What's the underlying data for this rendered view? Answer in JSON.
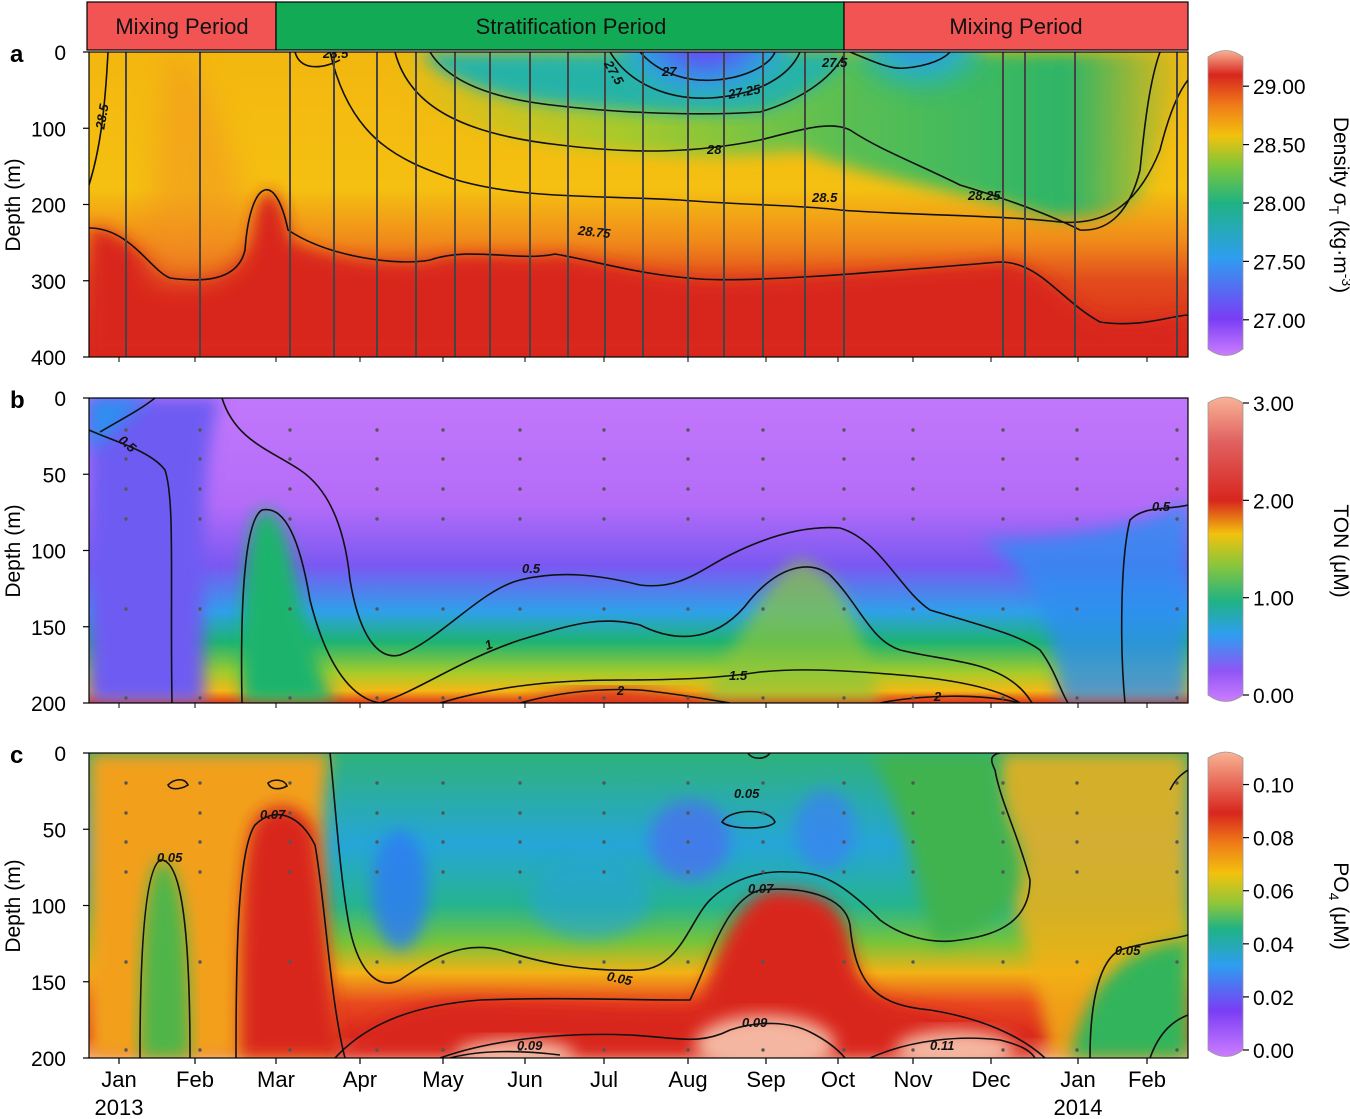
{
  "periods": [
    {
      "label": "Mixing Period",
      "color": "#f25454"
    },
    {
      "label": "Stratification Period",
      "color": "#13aa55"
    },
    {
      "label": "Mixing Period",
      "color": "#f25454"
    }
  ],
  "x_axis": {
    "months": [
      "Jan",
      "Feb",
      "Mar",
      "Apr",
      "May",
      "Jun",
      "Jul",
      "Aug",
      "Sep",
      "Oct",
      "Nov",
      "Dec",
      "Jan",
      "Feb"
    ],
    "years": [
      "2013",
      "2014"
    ]
  },
  "chart_data": [
    {
      "type": "heatmap",
      "panel_letter": "a",
      "ylabel": "Depth (m)",
      "y_ticks": [
        "0",
        "100",
        "200",
        "300",
        "400"
      ],
      "ylim": [
        400,
        0
      ],
      "colorbar_label": "Density σT (kg·m-3)",
      "colorbar_ticks": [
        "29.00",
        "28.50",
        "28.00",
        "27.50",
        "27.00"
      ],
      "colorbar_range": [
        26.75,
        29.25
      ],
      "contour_labels": [
        "28.5",
        "28.5",
        "27.5",
        "27",
        "27.25",
        "27.5",
        "28",
        "28.5",
        "28.25",
        "28.75"
      ],
      "sampling_lines": true
    },
    {
      "type": "heatmap",
      "panel_letter": "b",
      "ylabel": "Depth (m)",
      "y_ticks": [
        "0",
        "50",
        "100",
        "150",
        "200"
      ],
      "ylim": [
        200,
        0
      ],
      "colorbar_label": "TON (μM)",
      "colorbar_ticks": [
        "3.00",
        "2.00",
        "1.00",
        "0.00"
      ],
      "colorbar_range": [
        0,
        3
      ],
      "contour_labels": [
        "0.5",
        "0.5",
        "0.5",
        "1",
        "1.5",
        "2",
        "2"
      ],
      "sample_points": true
    },
    {
      "type": "heatmap",
      "panel_letter": "c",
      "ylabel": "Depth (m)",
      "y_ticks": [
        "0",
        "50",
        "100",
        "150",
        "200"
      ],
      "ylim": [
        200,
        0
      ],
      "colorbar_label": "PO4 (μM)",
      "colorbar_ticks": [
        "0.10",
        "0.08",
        "0.06",
        "0.04",
        "0.02",
        "0.00"
      ],
      "colorbar_range": [
        0,
        0.11
      ],
      "contour_labels": [
        "0.05",
        "0.07",
        "0.05",
        "0.07",
        "0.05",
        "0.09",
        "0.09",
        "0.11",
        "0.05"
      ],
      "sample_points": true
    }
  ]
}
